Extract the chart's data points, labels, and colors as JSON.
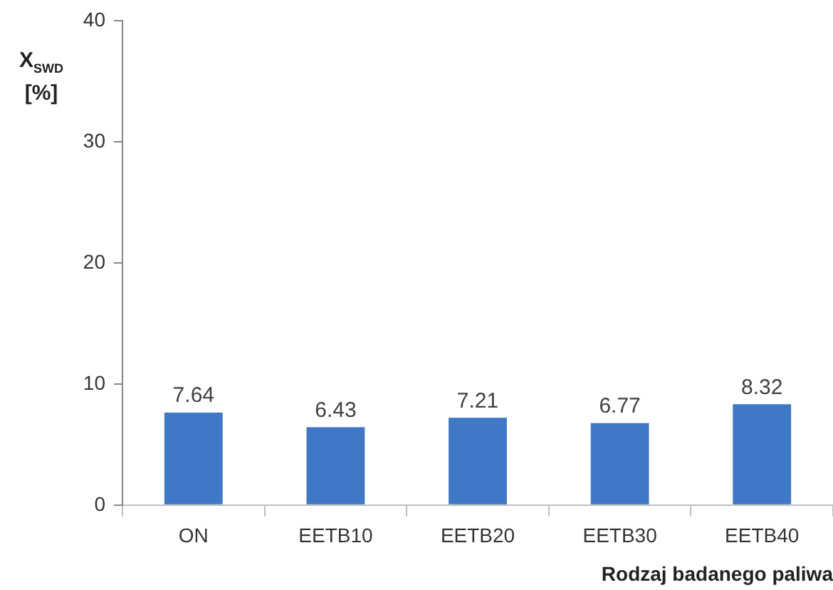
{
  "chart_data": {
    "type": "bar",
    "xlabel": "Rodzaj badanego paliwa",
    "ylabel": "X$_{SWD}$ [%]",
    "categories": [
      "ON",
      "EETB10",
      "EETB20",
      "EETB30",
      "EETB40"
    ],
    "values": [
      7.64,
      6.43,
      7.21,
      6.77,
      8.32
    ],
    "color": "#3f78c4",
    "ylim": [
      0,
      40
    ],
    "yticks": [
      0,
      10,
      20,
      30,
      40
    ],
    "grid": false,
    "legend": false,
    "data_labels": true
  }
}
